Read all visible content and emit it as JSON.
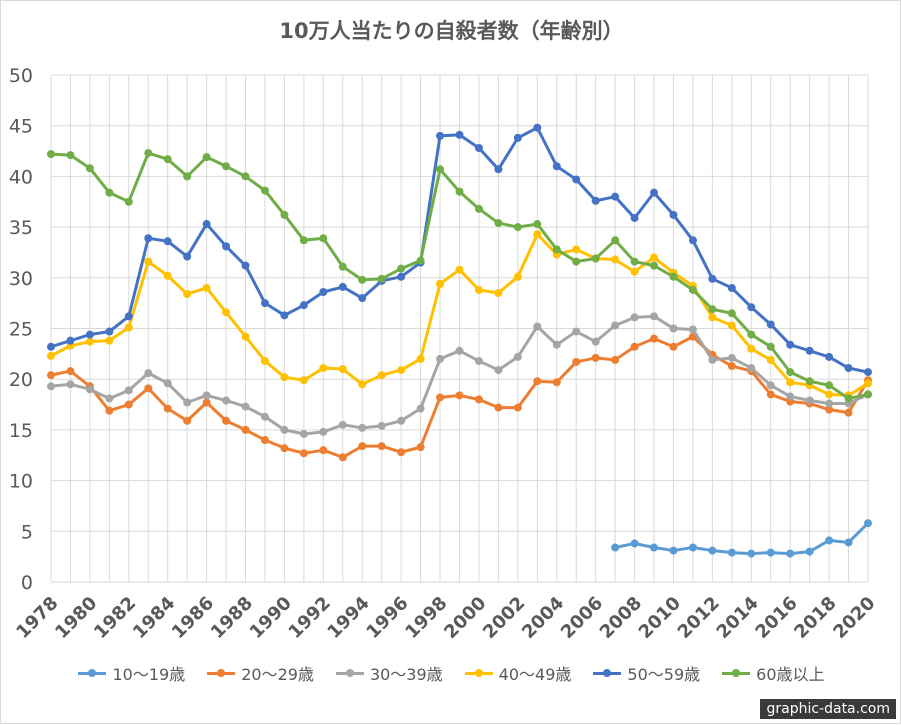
{
  "chart_data": {
    "type": "line",
    "title": "10万人当たりの自殺者数（年齢別）",
    "xlabel": "",
    "ylabel": "",
    "ylim": [
      0,
      50
    ],
    "yticks": [
      "0",
      "5",
      "10",
      "15",
      "20",
      "25",
      "30",
      "35",
      "40",
      "45",
      "50"
    ],
    "x": [
      1978,
      1979,
      1980,
      1981,
      1982,
      1983,
      1984,
      1985,
      1986,
      1987,
      1988,
      1989,
      1990,
      1991,
      1992,
      1993,
      1994,
      1995,
      1996,
      1997,
      1998,
      1999,
      2000,
      2001,
      2002,
      2003,
      2004,
      2005,
      2006,
      2007,
      2008,
      2009,
      2010,
      2011,
      2012,
      2013,
      2014,
      2015,
      2016,
      2017,
      2018,
      2019,
      2020
    ],
    "xticks": [
      "1978",
      "1980",
      "1982",
      "1984",
      "1986",
      "1988",
      "1990",
      "1992",
      "1994",
      "1996",
      "1998",
      "2000",
      "2002",
      "2004",
      "2006",
      "2008",
      "2010",
      "2012",
      "2014",
      "2016",
      "2018",
      "2020"
    ],
    "grid": true,
    "legend_position": "bottom",
    "series": [
      {
        "name": "10〜19歳",
        "color": "#5b9bd5",
        "values": [
          null,
          null,
          null,
          null,
          null,
          null,
          null,
          null,
          null,
          null,
          null,
          null,
          null,
          null,
          null,
          null,
          null,
          null,
          null,
          null,
          null,
          null,
          null,
          null,
          null,
          null,
          null,
          null,
          null,
          3.4,
          3.8,
          3.4,
          3.1,
          3.4,
          3.1,
          2.9,
          2.8,
          2.9,
          2.8,
          3.0,
          4.1,
          3.9,
          5.8
        ]
      },
      {
        "name": "20〜29歳",
        "color": "#ed7d31",
        "values": [
          20.4,
          20.8,
          19.3,
          16.9,
          17.5,
          19.1,
          17.1,
          15.9,
          17.7,
          15.9,
          15.0,
          14.0,
          13.2,
          12.7,
          13.0,
          12.3,
          13.4,
          13.4,
          12.8,
          13.3,
          18.2,
          18.4,
          18.0,
          17.2,
          17.2,
          19.8,
          19.7,
          21.7,
          22.1,
          21.9,
          23.2,
          24.0,
          23.2,
          24.2,
          22.4,
          21.3,
          20.8,
          18.5,
          17.8,
          17.6,
          17.0,
          16.7,
          19.9
        ]
      },
      {
        "name": "30〜39歳",
        "color": "#a5a5a5",
        "values": [
          19.3,
          19.5,
          19.0,
          18.1,
          18.9,
          20.6,
          19.6,
          17.7,
          18.4,
          17.9,
          17.3,
          16.3,
          15.0,
          14.6,
          14.8,
          15.5,
          15.2,
          15.4,
          15.9,
          17.1,
          22.0,
          22.8,
          21.8,
          20.9,
          22.2,
          25.2,
          23.4,
          24.7,
          23.7,
          25.3,
          26.1,
          26.2,
          25.0,
          24.9,
          21.9,
          22.1,
          21.1,
          19.4,
          18.3,
          17.9,
          17.6,
          17.6,
          18.5
        ]
      },
      {
        "name": "40〜49歳",
        "color": "#ffc000",
        "values": [
          22.3,
          23.3,
          23.7,
          23.8,
          25.1,
          31.6,
          30.2,
          28.4,
          29.0,
          26.6,
          24.2,
          21.8,
          20.2,
          19.9,
          21.1,
          21.0,
          19.5,
          20.4,
          20.9,
          22.0,
          29.4,
          30.8,
          28.8,
          28.5,
          30.1,
          34.3,
          32.3,
          32.8,
          31.9,
          31.8,
          30.6,
          32.0,
          30.5,
          29.2,
          26.1,
          25.3,
          23.0,
          21.9,
          19.7,
          19.4,
          18.5,
          18.4,
          19.6
        ]
      },
      {
        "name": "50〜59歳",
        "color": "#4472c4",
        "values": [
          23.2,
          23.8,
          24.4,
          24.7,
          26.2,
          33.9,
          33.6,
          32.1,
          35.3,
          33.1,
          31.2,
          27.5,
          26.3,
          27.3,
          28.6,
          29.1,
          28.0,
          29.7,
          30.1,
          31.5,
          44.0,
          44.1,
          42.8,
          40.7,
          43.8,
          44.8,
          41.0,
          39.7,
          37.6,
          38.0,
          35.9,
          38.4,
          36.2,
          33.7,
          29.9,
          29.0,
          27.1,
          25.4,
          23.4,
          22.8,
          22.2,
          21.1,
          20.7
        ]
      },
      {
        "name": "60歳以上",
        "color": "#70ad47",
        "values": [
          42.2,
          42.1,
          40.8,
          38.4,
          37.5,
          42.3,
          41.7,
          40.0,
          41.9,
          41.0,
          40.0,
          38.6,
          36.2,
          33.7,
          33.9,
          31.1,
          29.8,
          29.9,
          30.9,
          31.7,
          40.7,
          38.5,
          36.8,
          35.4,
          35.0,
          35.3,
          32.8,
          31.6,
          31.9,
          33.7,
          31.6,
          31.2,
          30.1,
          28.8,
          26.9,
          26.5,
          24.4,
          23.2,
          20.7,
          19.8,
          19.4,
          18.1,
          18.5
        ]
      }
    ]
  },
  "watermark": "graphic-data.com"
}
